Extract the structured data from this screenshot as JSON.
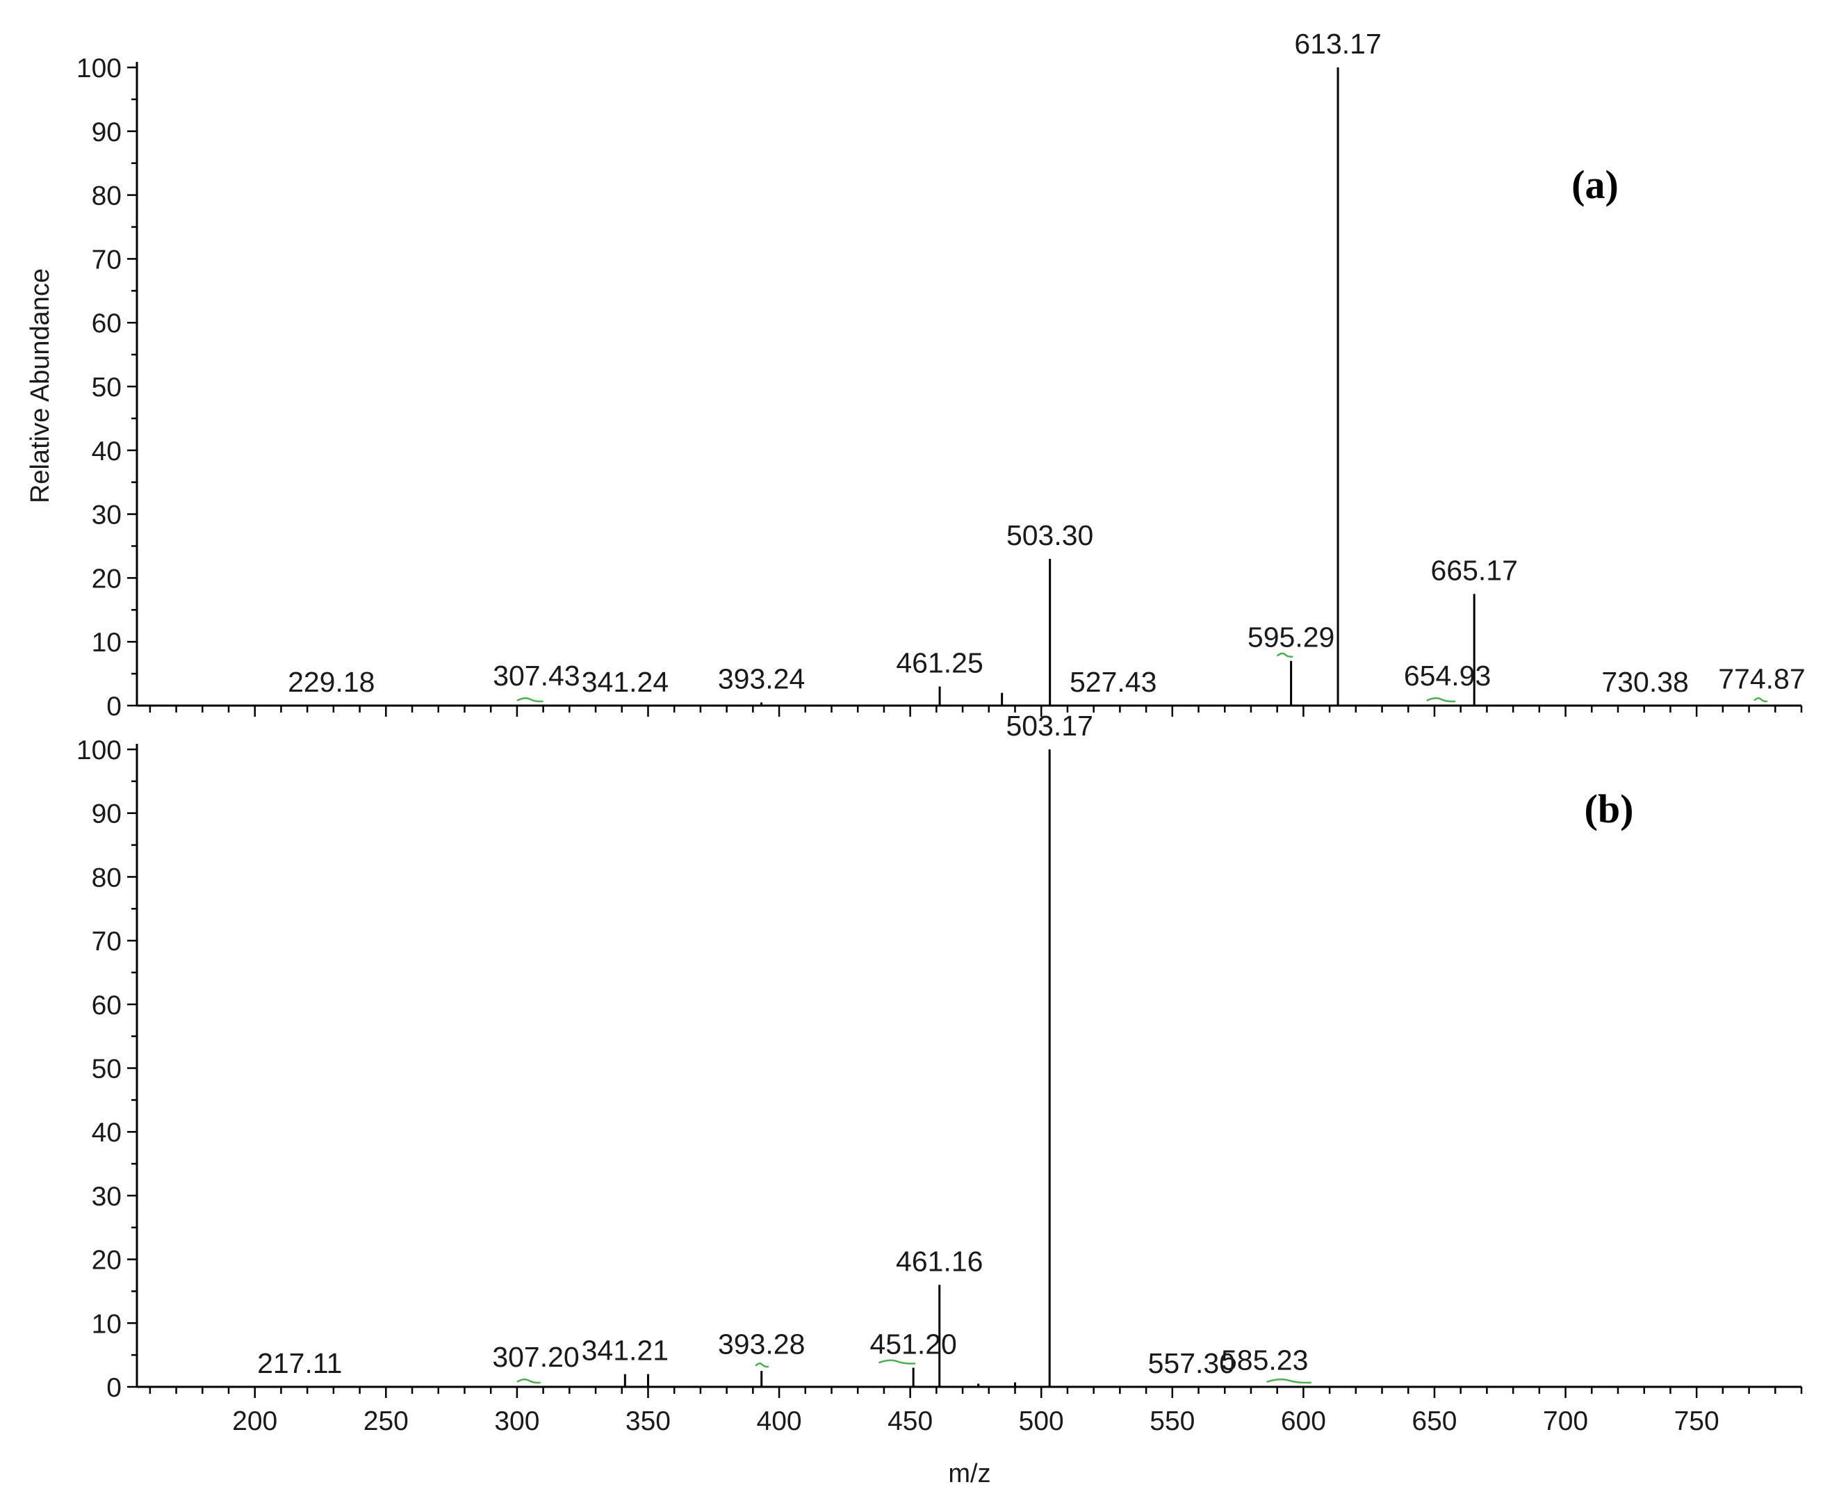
{
  "chart_data": {
    "type": "bar",
    "xlabel": "m/z",
    "ylabel": "Relative Abundance",
    "xlim": [
      155,
      790
    ],
    "ylim": [
      0,
      100
    ],
    "x_ticks": [
      200,
      250,
      300,
      350,
      400,
      450,
      500,
      550,
      600,
      650,
      700,
      750
    ],
    "y_ticks": [
      0,
      10,
      20,
      30,
      40,
      50,
      60,
      70,
      80,
      90,
      100
    ],
    "colors": {
      "peaks": "#000000",
      "axes": "#000000",
      "noise": "#4caf50"
    },
    "panels": [
      {
        "tag": "(a)",
        "labels": [
          {
            "text": "229.18",
            "x": 229.18,
            "y": 0
          },
          {
            "text": "307.43",
            "x": 307.43,
            "y": 1
          },
          {
            "text": "341.24",
            "x": 341.24,
            "y": 0
          },
          {
            "text": "393.24",
            "x": 393.24,
            "y": 0.5
          },
          {
            "text": "461.25",
            "x": 461.25,
            "y": 3
          },
          {
            "text": "503.30",
            "x": 503.3,
            "y": 23
          },
          {
            "text": "527.43",
            "x": 527.43,
            "y": 0
          },
          {
            "text": "595.29",
            "x": 595.29,
            "y": 7
          },
          {
            "text": "613.17",
            "x": 613.17,
            "y": 100
          },
          {
            "text": "654.93",
            "x": 654.93,
            "y": 1
          },
          {
            "text": "665.17",
            "x": 665.17,
            "y": 17.5
          },
          {
            "text": "730.38",
            "x": 730.38,
            "y": 0
          },
          {
            "text": "774.87",
            "x": 774.87,
            "y": 0.5
          }
        ],
        "peaks": [
          {
            "x": 393.24,
            "y": 0.5
          },
          {
            "x": 461.25,
            "y": 3
          },
          {
            "x": 485,
            "y": 2
          },
          {
            "x": 503.3,
            "y": 23
          },
          {
            "x": 595.29,
            "y": 7
          },
          {
            "x": 613.17,
            "y": 100
          },
          {
            "x": 665.17,
            "y": 17.5
          }
        ],
        "noise": [
          {
            "x": [
              300,
              310
            ],
            "y": 1
          },
          {
            "x": [
              590,
              596
            ],
            "y": 8
          },
          {
            "x": [
              647,
              658
            ],
            "y": 1
          },
          {
            "x": [
              772,
              777
            ],
            "y": 1
          }
        ]
      },
      {
        "tag": "(b)",
        "labels": [
          {
            "text": "217.11",
            "x": 217.11,
            "y": 0
          },
          {
            "text": "307.20",
            "x": 307.2,
            "y": 1
          },
          {
            "text": "341.21",
            "x": 341.21,
            "y": 2
          },
          {
            "text": "393.28",
            "x": 393.28,
            "y": 3
          },
          {
            "text": "451.20",
            "x": 451.2,
            "y": 3
          },
          {
            "text": "461.16",
            "x": 461.16,
            "y": 16
          },
          {
            "text": "503.17",
            "x": 503.17,
            "y": 100
          },
          {
            "text": "557.30",
            "x": 557.3,
            "y": 0
          },
          {
            "text": "585.23",
            "x": 585.23,
            "y": 0.5
          }
        ],
        "peaks": [
          {
            "x": 341.21,
            "y": 2
          },
          {
            "x": 350,
            "y": 2
          },
          {
            "x": 393.28,
            "y": 2.5
          },
          {
            "x": 451.2,
            "y": 3
          },
          {
            "x": 461.16,
            "y": 16
          },
          {
            "x": 476,
            "y": 0.5
          },
          {
            "x": 490,
            "y": 0.7
          },
          {
            "x": 503.17,
            "y": 100
          }
        ],
        "noise": [
          {
            "x": [
              300,
              309
            ],
            "y": 1
          },
          {
            "x": [
              391,
              396
            ],
            "y": 3.5
          },
          {
            "x": [
              438,
              452
            ],
            "y": 4
          },
          {
            "x": [
              586,
              603
            ],
            "y": 1
          }
        ]
      }
    ]
  }
}
